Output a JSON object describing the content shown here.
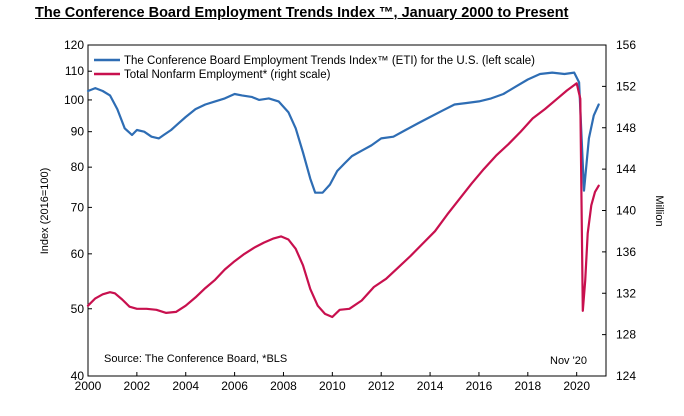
{
  "title": "The Conference Board Employment Trends Index ™, January 2000 to Present",
  "chart_data": {
    "type": "line",
    "title": "The Conference Board Employment Trends Index ™, January 2000 to Present",
    "ylabel_left": "Index (2016=100)",
    "ylabel_right": "Million",
    "left_scale": "log",
    "ylim_left": [
      40,
      120
    ],
    "ylim_right": [
      124,
      156
    ],
    "xlim": [
      2000,
      2021.2
    ],
    "x_ticks": [
      "2000",
      "2002",
      "2004",
      "2006",
      "2008",
      "2010",
      "2012",
      "2014",
      "2016",
      "2018",
      "2020"
    ],
    "y_ticks_left": [
      "40",
      "50",
      "60",
      "70",
      "80",
      "90",
      "100",
      "110",
      "120"
    ],
    "y_ticks_right": [
      "124",
      "128",
      "132",
      "136",
      "140",
      "144",
      "148",
      "152",
      "156"
    ],
    "source_note": "Source: The Conference Board, *BLS",
    "date_note": "Nov '20",
    "series": [
      {
        "name": "The Conference Board Employment Trends Index™ (ETI) for the U.S. (left scale)",
        "axis": "left",
        "color": "#2E6DB4",
        "x": [
          2000.0,
          2000.3,
          2000.6,
          2000.9,
          2001.2,
          2001.5,
          2001.8,
          2002.0,
          2002.3,
          2002.6,
          2002.9,
          2003.1,
          2003.4,
          2003.7,
          2004.0,
          2004.4,
          2004.8,
          2005.2,
          2005.6,
          2006.0,
          2006.3,
          2006.7,
          2007.0,
          2007.4,
          2007.8,
          2008.2,
          2008.5,
          2008.8,
          2009.1,
          2009.3,
          2009.6,
          2009.9,
          2010.2,
          2010.5,
          2010.8,
          2011.2,
          2011.6,
          2012.0,
          2012.5,
          2013.0,
          2013.5,
          2014.0,
          2014.5,
          2015.0,
          2015.5,
          2016.0,
          2016.5,
          2017.0,
          2017.5,
          2018.0,
          2018.5,
          2019.0,
          2019.5,
          2019.9,
          2020.1,
          2020.3,
          2020.5,
          2020.7,
          2020.9
        ],
        "y": [
          103,
          104,
          103,
          101.5,
          97,
          91,
          89,
          90.5,
          90,
          88.5,
          88,
          89,
          90.5,
          92.5,
          94.5,
          97,
          98.5,
          99.5,
          100.5,
          102,
          101.5,
          101,
          100,
          100.5,
          99.5,
          96,
          91,
          84,
          77,
          73.5,
          73.5,
          75.5,
          79,
          81,
          83,
          84.5,
          86,
          88,
          88.5,
          90.5,
          92.5,
          94.5,
          96.5,
          98.5,
          99,
          99.5,
          100.5,
          102,
          104.5,
          107,
          109,
          109.5,
          109,
          109.5,
          106,
          74,
          88,
          95,
          98.5
        ]
      },
      {
        "name": "Total Nonfarm Employment* (right scale)",
        "axis": "right",
        "color": "#C8104E",
        "x": [
          2000.0,
          2000.3,
          2000.6,
          2000.9,
          2001.1,
          2001.4,
          2001.7,
          2002.0,
          2002.4,
          2002.8,
          2003.2,
          2003.6,
          2004.0,
          2004.4,
          2004.8,
          2005.2,
          2005.6,
          2006.0,
          2006.4,
          2006.8,
          2007.2,
          2007.6,
          2007.9,
          2008.2,
          2008.5,
          2008.8,
          2009.1,
          2009.4,
          2009.7,
          2010.0,
          2010.3,
          2010.7,
          2011.2,
          2011.7,
          2012.2,
          2012.7,
          2013.2,
          2013.7,
          2014.2,
          2014.7,
          2015.2,
          2015.7,
          2016.2,
          2016.7,
          2017.2,
          2017.7,
          2018.2,
          2018.7,
          2019.2,
          2019.6,
          2020.0,
          2020.15,
          2020.25,
          2020.35,
          2020.45,
          2020.6,
          2020.75,
          2020.9
        ],
        "y": [
          130.8,
          131.5,
          131.9,
          132.1,
          132.0,
          131.4,
          130.7,
          130.5,
          130.5,
          130.4,
          130.1,
          130.2,
          130.8,
          131.6,
          132.5,
          133.3,
          134.3,
          135.1,
          135.8,
          136.4,
          136.9,
          137.3,
          137.5,
          137.2,
          136.3,
          134.7,
          132.4,
          130.8,
          130.0,
          129.7,
          130.4,
          130.5,
          131.3,
          132.6,
          133.4,
          134.5,
          135.6,
          136.8,
          138.0,
          139.6,
          141.1,
          142.6,
          144.0,
          145.3,
          146.4,
          147.6,
          148.9,
          149.8,
          150.8,
          151.6,
          152.3,
          150.8,
          130.3,
          133.2,
          137.8,
          140.5,
          141.8,
          142.4
        ]
      }
    ]
  }
}
